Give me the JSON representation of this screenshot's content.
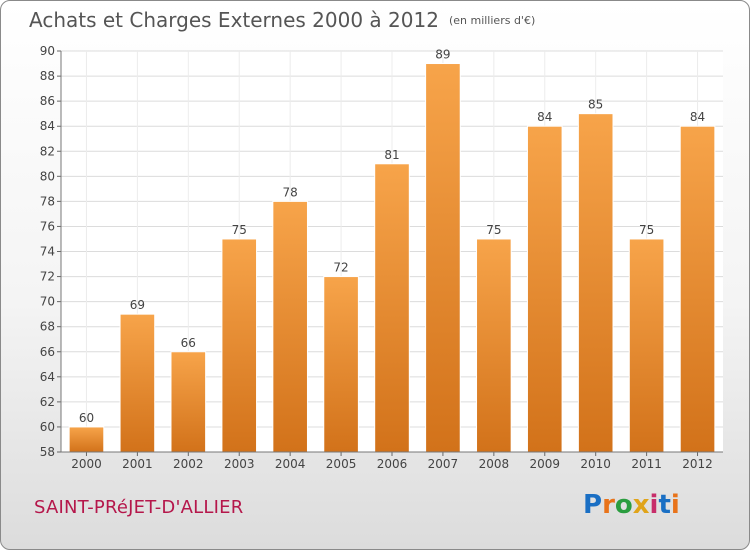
{
  "header": {
    "title": "Achats et Charges Externes 2000 à 2012",
    "unit": "(en milliers d'€)"
  },
  "footer": {
    "commune": "SAINT-PRéJET-D'ALLIER",
    "logo": {
      "text": "Proxiti",
      "letter_colors": [
        "#1a6fc4",
        "#e8731a",
        "#2a9d3f",
        "#e0a41a",
        "#c72d6a",
        "#1a6fc4",
        "#e8731a"
      ]
    }
  },
  "chart_data": {
    "type": "bar",
    "title": "Achats et Charges Externes 2000 à 2012",
    "subtitle": "(en milliers d'€)",
    "categories": [
      "2000",
      "2001",
      "2002",
      "2003",
      "2004",
      "2005",
      "2006",
      "2007",
      "2008",
      "2009",
      "2010",
      "2011",
      "2012"
    ],
    "values": [
      60,
      69,
      66,
      75,
      78,
      72,
      81,
      89,
      75,
      84,
      85,
      75,
      84
    ],
    "ylim": [
      58,
      90
    ],
    "yticks": [
      58,
      60,
      62,
      64,
      66,
      68,
      70,
      72,
      74,
      76,
      78,
      80,
      82,
      84,
      86,
      88,
      90
    ],
    "grid": true,
    "bar_color_top": "#f7a44a",
    "bar_color_bottom": "#d2721a",
    "grid_color": "#dcdcdc"
  }
}
